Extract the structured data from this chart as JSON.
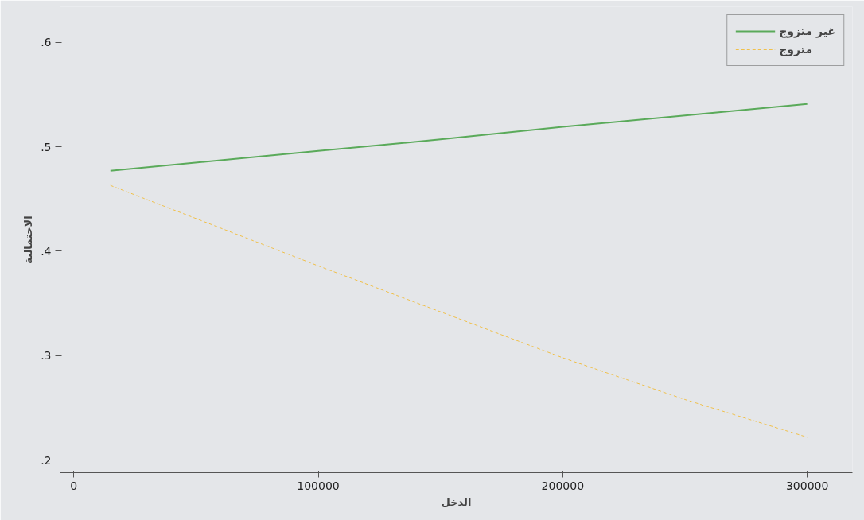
{
  "chart_data": {
    "type": "line",
    "xlabel": "الدخل",
    "ylabel": "الاحتمالية",
    "x": [
      15000,
      100000,
      150000,
      200000,
      250000,
      300000
    ],
    "series": [
      {
        "name": "غير متزوج",
        "color": "#5aaa5a",
        "line_style": "solid",
        "values": [
          0.477,
          0.496,
          0.507,
          0.519,
          0.53,
          0.541
        ]
      },
      {
        "name": "متزوج",
        "color": "#f0c04a",
        "line_style": "dashed",
        "values": [
          0.463,
          0.386,
          0.342,
          0.298,
          0.258,
          0.222
        ]
      }
    ],
    "xlim": [
      -5600,
      318500
    ],
    "ylim": [
      0.188,
      0.634
    ],
    "xticks": [
      0,
      100000,
      200000,
      300000
    ],
    "yticks": [
      {
        "value": 0.2,
        "label": ".2"
      },
      {
        "value": 0.3,
        "label": ".3"
      },
      {
        "value": 0.4,
        "label": ".4"
      },
      {
        "value": 0.5,
        "label": ".5"
      },
      {
        "value": 0.6,
        "label": ".6"
      }
    ],
    "legend": "top right",
    "marker": "none"
  }
}
